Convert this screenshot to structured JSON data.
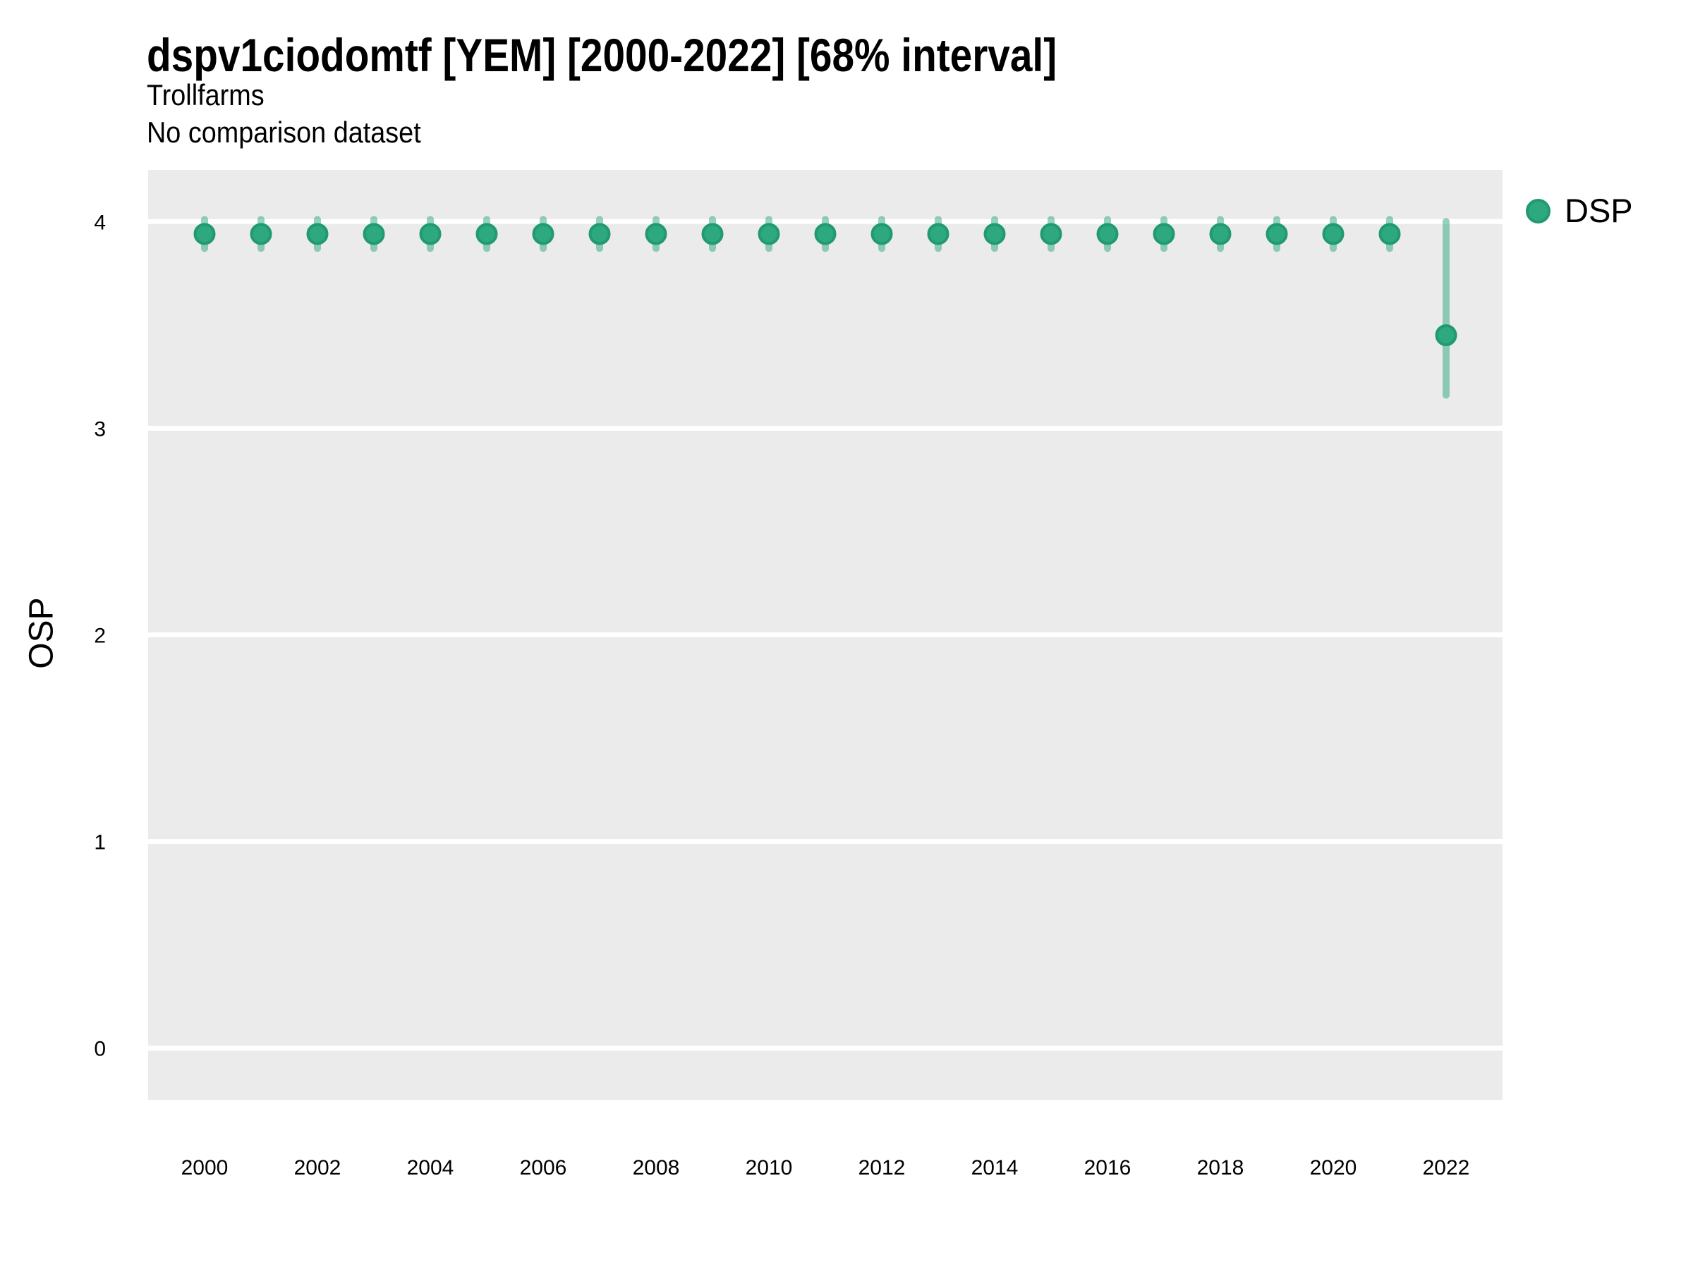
{
  "header": {
    "title": "dspv1ciodomtf [YEM] [2000-2022] [68% interval]",
    "subtitle1": "Trollfarms",
    "subtitle2": "No comparison dataset"
  },
  "legend": {
    "label": "DSP"
  },
  "colors": {
    "point": "#2EA87F",
    "point_ring": "#219A6F",
    "error_bar": "rgba(46,168,127,0.5)",
    "panel_bg": "#EBEBEB",
    "gridline": "#FFFFFF",
    "text": "#000000"
  },
  "chart_data": {
    "type": "scatter",
    "title": "dspv1ciodomtf [YEM] [2000-2022] [68% interval]",
    "subtitle": [
      "Trollfarms",
      "No comparison dataset"
    ],
    "xlabel": "",
    "ylabel": "OSP",
    "xlim": [
      1999,
      2023
    ],
    "ylim": [
      -0.25,
      4.25
    ],
    "x_ticks": [
      2000,
      2002,
      2004,
      2006,
      2008,
      2010,
      2012,
      2014,
      2016,
      2018,
      2020,
      2022
    ],
    "y_ticks": [
      0,
      1,
      2,
      3,
      4
    ],
    "grid": "horizontal major gridlines, white on grey panel",
    "legend_position": "right-top",
    "interval": "68%",
    "series": [
      {
        "name": "DSP",
        "points": [
          {
            "x": 2000,
            "y": 3.94,
            "lo": 3.87,
            "hi": 4.01
          },
          {
            "x": 2001,
            "y": 3.94,
            "lo": 3.87,
            "hi": 4.01
          },
          {
            "x": 2002,
            "y": 3.94,
            "lo": 3.87,
            "hi": 4.01
          },
          {
            "x": 2003,
            "y": 3.94,
            "lo": 3.87,
            "hi": 4.01
          },
          {
            "x": 2004,
            "y": 3.94,
            "lo": 3.87,
            "hi": 4.01
          },
          {
            "x": 2005,
            "y": 3.94,
            "lo": 3.87,
            "hi": 4.01
          },
          {
            "x": 2006,
            "y": 3.94,
            "lo": 3.87,
            "hi": 4.01
          },
          {
            "x": 2007,
            "y": 3.94,
            "lo": 3.87,
            "hi": 4.01
          },
          {
            "x": 2008,
            "y": 3.94,
            "lo": 3.87,
            "hi": 4.01
          },
          {
            "x": 2009,
            "y": 3.94,
            "lo": 3.87,
            "hi": 4.01
          },
          {
            "x": 2010,
            "y": 3.94,
            "lo": 3.87,
            "hi": 4.01
          },
          {
            "x": 2011,
            "y": 3.94,
            "lo": 3.87,
            "hi": 4.01
          },
          {
            "x": 2012,
            "y": 3.94,
            "lo": 3.87,
            "hi": 4.01
          },
          {
            "x": 2013,
            "y": 3.94,
            "lo": 3.87,
            "hi": 4.01
          },
          {
            "x": 2014,
            "y": 3.94,
            "lo": 3.87,
            "hi": 4.01
          },
          {
            "x": 2015,
            "y": 3.94,
            "lo": 3.87,
            "hi": 4.01
          },
          {
            "x": 2016,
            "y": 3.94,
            "lo": 3.87,
            "hi": 4.01
          },
          {
            "x": 2017,
            "y": 3.94,
            "lo": 3.87,
            "hi": 4.01
          },
          {
            "x": 2018,
            "y": 3.94,
            "lo": 3.87,
            "hi": 4.01
          },
          {
            "x": 2019,
            "y": 3.94,
            "lo": 3.87,
            "hi": 4.01
          },
          {
            "x": 2020,
            "y": 3.94,
            "lo": 3.87,
            "hi": 4.01
          },
          {
            "x": 2021,
            "y": 3.94,
            "lo": 3.87,
            "hi": 4.01
          },
          {
            "x": 2022,
            "y": 3.45,
            "lo": 3.16,
            "hi": 4.0
          }
        ]
      }
    ]
  }
}
